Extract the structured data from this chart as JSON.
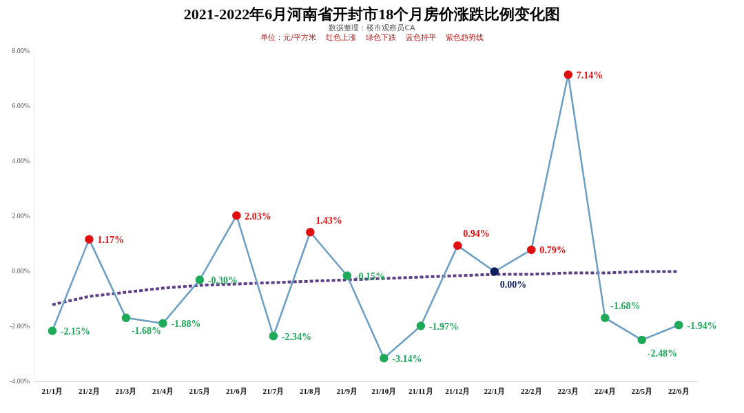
{
  "chart_data": {
    "type": "line",
    "title": "2021-2022年6月河南省开封市18个月房价涨跌比例变化图",
    "subtitle": "数据整理：楼市观察员CA",
    "annotations": [
      "单位：元/平方米    红色上涨    绿色下跌    蓝色持平    紫色趋势线"
    ],
    "categories": [
      "21/1月",
      "21/2月",
      "21/3月",
      "21/4月",
      "21/5月",
      "21/6月",
      "21/7月",
      "21/8月",
      "21/9月",
      "21/10月",
      "21/11月",
      "21/12月",
      "22/1月",
      "22/2月",
      "22/3月",
      "22/4月",
      "22/5月",
      "22/6月"
    ],
    "series": [
      {
        "color": "#6b9ec4",
        "marker": "circle",
        "line_style": "solid",
        "values": [
          -2.15,
          1.17,
          -1.68,
          -1.88,
          -0.3,
          2.03,
          -2.34,
          1.43,
          -0.15,
          -3.14,
          -1.97,
          0.94,
          0.0,
          0.79,
          7.14,
          -1.68,
          -2.48,
          -1.94
        ],
        "colors": [
          "#1faa5a",
          "#e01010",
          "#1faa5a",
          "#1faa5a",
          "#1faa5a",
          "#e01010",
          "#1faa5a",
          "#e01010",
          "#1faa5a",
          "#1faa5a",
          "#1faa5a",
          "#e01010",
          "#0f1f5c",
          "#e01010",
          "#e01010",
          "#1faa5a",
          "#1faa5a",
          "#1faa5a"
        ],
        "value_labels": [
          "-2.15%",
          "1.17%",
          "-1.68%",
          "-1.88%",
          "-0.30%",
          "2.03%",
          "-2.34%",
          "1.43%",
          "-0.15%",
          "-3.14%",
          "-1.97%",
          "0.94%",
          "0.00%",
          "0.79%",
          "7.14%",
          "-1.68%",
          "-2.48%",
          "-1.94%"
        ]
      },
      {
        "color": "#5a3f85",
        "marker": "none",
        "line_style": "dotted",
        "values": [
          -1.2,
          -0.9,
          -0.75,
          -0.6,
          -0.5,
          -0.45,
          -0.4,
          -0.35,
          -0.3,
          -0.25,
          -0.2,
          -0.15,
          -0.1,
          -0.1,
          -0.05,
          -0.05,
          0.0,
          0.0
        ]
      }
    ],
    "ylim": [
      -4,
      8
    ],
    "yticks": [
      {
        "value": -4,
        "label": "-4.00%"
      },
      {
        "value": -2,
        "label": "-2.00%"
      },
      {
        "value": 0,
        "label": "0.00%"
      },
      {
        "value": 2,
        "label": "2.00%"
      },
      {
        "value": 4,
        "label": "4.00%"
      },
      {
        "value": 6,
        "label": "6.00%"
      },
      {
        "value": 8,
        "label": "8.00%"
      }
    ],
    "grid": false,
    "legend": false
  }
}
